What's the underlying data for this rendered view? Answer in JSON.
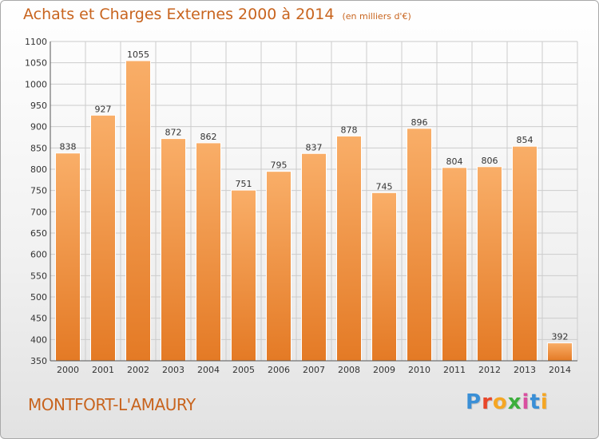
{
  "header": {
    "title": "Achats et Charges Externes 2000 à 2014",
    "unit": "(en milliers d'€)"
  },
  "footer": {
    "commune": "MONTFORT-L'AMAURY",
    "logo": [
      "P",
      "r",
      "o",
      "x",
      "i",
      "t",
      "i"
    ],
    "logo_colors": [
      "#3a8fd6",
      "#e8462a",
      "#f5a623",
      "#3cae3c",
      "#d94fa0",
      "#3a8fd6",
      "#f5a623"
    ]
  },
  "colors": {
    "accent": "#c8641e",
    "bar_light": "#f9ae68",
    "bar_dark": "#e47a25",
    "grid": "#cccccc"
  },
  "chart_data": {
    "type": "bar",
    "title": "Achats et Charges Externes 2000 à 2014",
    "xlabel": "",
    "ylabel": "",
    "grid": true,
    "categories": [
      "2000",
      "2001",
      "2002",
      "2003",
      "2004",
      "2005",
      "2006",
      "2007",
      "2008",
      "2009",
      "2010",
      "2011",
      "2012",
      "2013",
      "2014"
    ],
    "values": [
      838,
      927,
      1055,
      872,
      862,
      751,
      795,
      837,
      878,
      745,
      896,
      804,
      806,
      854,
      392
    ],
    "ylim": [
      350,
      1100
    ],
    "yticks": [
      350,
      400,
      450,
      500,
      550,
      600,
      650,
      700,
      750,
      800,
      850,
      900,
      950,
      1000,
      1050,
      1100
    ]
  }
}
